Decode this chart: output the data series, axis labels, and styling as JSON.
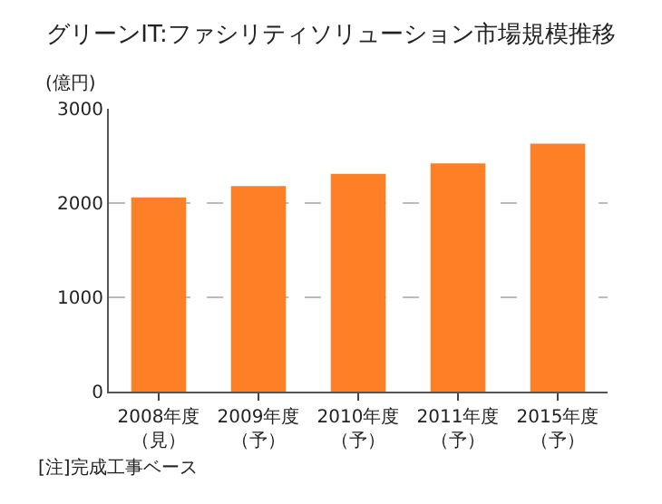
{
  "chart_data": {
    "type": "bar",
    "title": "グリーンIT:ファシリティソリューション市場規模推移",
    "ylabel": "(億円)",
    "categories": [
      "2008年度（見）",
      "2009年度（予）",
      "2010年度（予）",
      "2011年度（予）",
      "2015年度（予）"
    ],
    "values": [
      2060,
      2180,
      2310,
      2420,
      2630
    ],
    "color": "#ff7f27",
    "ylim": [
      0,
      3000
    ],
    "yticks": [
      0,
      1000,
      2000,
      3000
    ],
    "grid": "y",
    "annotations": [
      "[注]完成工事ベース"
    ]
  }
}
